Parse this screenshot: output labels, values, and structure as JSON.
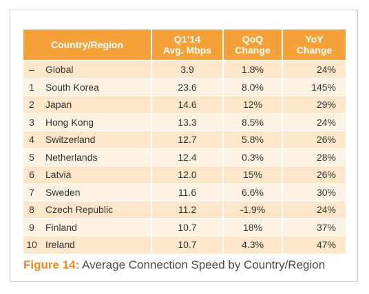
{
  "table": {
    "headers": {
      "country": "Country/Region",
      "speed_line1": "Q1’14",
      "speed_line2": "Avg. Mbps",
      "qoq_line1": "QoQ",
      "qoq_line2": "Change",
      "yoy_line1": "YoY",
      "yoy_line2": "Change"
    },
    "rows": [
      {
        "rank": "–",
        "country": "Global",
        "speed": "3.9",
        "qoq": "1.8%",
        "yoy": "24%"
      },
      {
        "rank": "1",
        "country": "South Korea",
        "speed": "23.6",
        "qoq": "8.0%",
        "yoy": "145%"
      },
      {
        "rank": "2",
        "country": "Japan",
        "speed": "14.6",
        "qoq": "12%",
        "yoy": "29%"
      },
      {
        "rank": "3",
        "country": "Hong Kong",
        "speed": "13.3",
        "qoq": "8.5%",
        "yoy": "24%"
      },
      {
        "rank": "4",
        "country": "Switzerland",
        "speed": "12.7",
        "qoq": "5.8%",
        "yoy": "26%"
      },
      {
        "rank": "5",
        "country": "Netherlands",
        "speed": "12.4",
        "qoq": "0.3%",
        "yoy": "28%"
      },
      {
        "rank": "6",
        "country": "Latvia",
        "speed": "12.0",
        "qoq": "15%",
        "yoy": "26%"
      },
      {
        "rank": "7",
        "country": "Sweden",
        "speed": "11.6",
        "qoq": "6.6%",
        "yoy": "30%"
      },
      {
        "rank": "8",
        "country": "Czech Republic",
        "speed": "11.2",
        "qoq": "-1.9%",
        "yoy": "24%"
      },
      {
        "rank": "9",
        "country": "Finland",
        "speed": "10.7",
        "qoq": "18%",
        "yoy": "37%"
      },
      {
        "rank": "10",
        "country": "Ireland",
        "speed": "10.7",
        "qoq": "4.3%",
        "yoy": "47%"
      }
    ]
  },
  "caption": {
    "label": "Figure 14:",
    "text": " Average Connection Speed by Country/Region"
  },
  "colors": {
    "header_orange": "#f4a13a",
    "row_light": "#fef3e3",
    "row_dark": "#fde6c9",
    "caption_orange": "#f08a1c"
  }
}
